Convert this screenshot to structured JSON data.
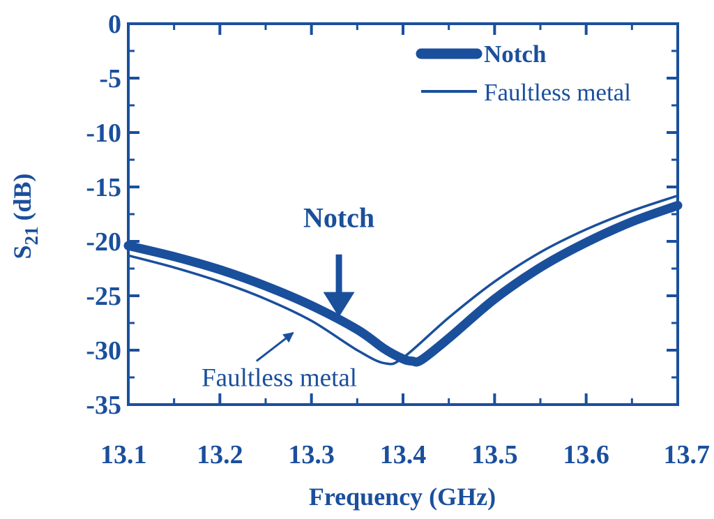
{
  "colors": {
    "ink": "#1a4f9c"
  },
  "chart_data": {
    "type": "line",
    "xlabel": "Frequency (GHz)",
    "ylabel_main": "S",
    "ylabel_sub": "21",
    "ylabel_unit": "(dB)",
    "xlim": [
      13.1,
      13.7
    ],
    "ylim": [
      -35,
      0
    ],
    "xticks": [
      "13.1",
      "13.2",
      "13.3",
      "13.4",
      "13.5",
      "13.6",
      "13.7"
    ],
    "yticks": [
      "0",
      "-5",
      "-10",
      "-15",
      "-20",
      "-25",
      "-30",
      "-35"
    ],
    "grid": false,
    "legend_position": "top-right",
    "series": [
      {
        "name": "Notch",
        "style": "thick",
        "points": [
          [
            13.1,
            -20.4
          ],
          [
            13.15,
            -21.4
          ],
          [
            13.2,
            -22.6
          ],
          [
            13.25,
            -24.1
          ],
          [
            13.3,
            -25.9
          ],
          [
            13.35,
            -28.1
          ],
          [
            13.38,
            -29.9
          ],
          [
            13.4,
            -30.8
          ],
          [
            13.41,
            -31.0
          ],
          [
            13.42,
            -30.9
          ],
          [
            13.45,
            -28.9
          ],
          [
            13.5,
            -25.3
          ],
          [
            13.55,
            -22.4
          ],
          [
            13.6,
            -20.1
          ],
          [
            13.65,
            -18.2
          ],
          [
            13.7,
            -16.7
          ]
        ]
      },
      {
        "name": "Faultless metal",
        "style": "thin",
        "points": [
          [
            13.1,
            -21.3
          ],
          [
            13.15,
            -22.4
          ],
          [
            13.2,
            -23.7
          ],
          [
            13.25,
            -25.3
          ],
          [
            13.3,
            -27.3
          ],
          [
            13.35,
            -30.0
          ],
          [
            13.38,
            -31.2
          ],
          [
            13.4,
            -30.7
          ],
          [
            13.45,
            -27.0
          ],
          [
            13.5,
            -23.7
          ],
          [
            13.55,
            -21.0
          ],
          [
            13.6,
            -18.9
          ],
          [
            13.65,
            -17.2
          ],
          [
            13.7,
            -15.8
          ]
        ]
      }
    ],
    "annotations": [
      {
        "text": "Notch",
        "style": "bold",
        "text_at": [
          13.33,
          -18.7
        ],
        "arrow_from": [
          13.33,
          -21.2
        ],
        "arrow_to": [
          13.33,
          -26.5
        ]
      },
      {
        "text": "Faultless metal",
        "style": "normal",
        "text_at": [
          13.18,
          -33.3
        ],
        "arrow_from": [
          13.24,
          -31.0
        ],
        "arrow_to": [
          13.28,
          -28.4
        ]
      }
    ]
  }
}
